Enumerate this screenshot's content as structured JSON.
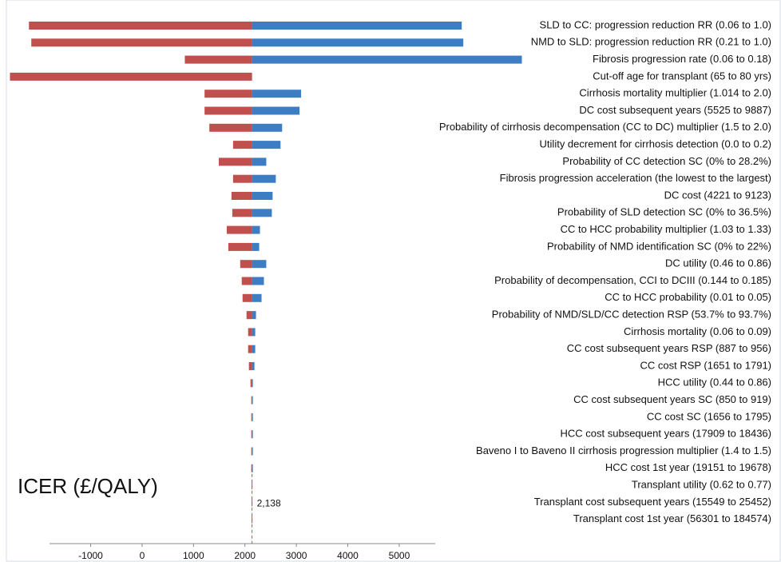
{
  "chart_data": {
    "type": "tornado",
    "xlabel": "ICER (£/QALY)",
    "base": {
      "value": 2138,
      "label": "2,138"
    },
    "categories": [
      "SLD to CC: progression reduction RR (0.06 to 1.0)",
      "NMD to SLD: progression reduction RR (0.21 to 1.0)",
      "Fibrosis progression rate (0.06 to 0.18)",
      "Cut-off age for transplant (65 to 80 yrs)",
      "Cirrhosis mortality multiplier (1.014 to 2.0)",
      "DC cost subsequent years (5525 to 9887)",
      "Probability of cirrhosis decompensation (CC to DC) multiplier (1.5 to 2.0)",
      "Utility decrement for cirrhosis detection (0.0 to 0.2)",
      "Probability of CC detection SC (0% to 28.2%)",
      "Fibrosis progression acceleration (the lowest to the largest)",
      "DC cost (4221 to 9123)",
      "Probability of SLD detection SC (0% to 36.5%)",
      "CC to HCC probability multiplier (1.03 to 1.33)",
      "Probability of NMD identification SC (0% to 22%)",
      "DC utility (0.46 to 0.86)",
      "Probability of decompensation, CCI to DCIII (0.144 to 0.185)",
      "CC to HCC probability (0.01 to 0.05)",
      "Probability of NMD/SLD/CC detection RSP (53.7% to 93.7%)",
      "Cirrhosis mortality (0.06 to 0.09)",
      "CC cost subsequent years RSP (887 to 956)",
      "CC cost RSP (1651 to 1791)",
      "HCC utility (0.44 to 0.86)",
      "CC cost subsequent years SC (850 to 919)",
      "CC cost SC (1656 to 1795)",
      "HCC cost subsequent years (17909 to 18436)",
      "Baveno I to Baveno II cirrhosis progression multiplier (1.4 to 1.5)",
      "HCC cost 1st year (19151 to 19678)",
      "Transplant utility (0.62 to 0.77)",
      "Transplant cost subsequent years (15549 to 25452)",
      "Transplant cost 1st year (56301 to 184574)"
    ],
    "series": [
      {
        "color": "#c0504d",
        "values": [
          -2200,
          -2154,
          831,
          -2569,
          1215,
          1215,
          1308,
          1769,
          1492,
          1769,
          1738,
          1754,
          1646,
          1677,
          1908,
          1938,
          1954,
          2031,
          2062,
          2062,
          2077,
          2108,
          2123,
          2123,
          2123,
          2123,
          2123,
          2130,
          2130,
          2130
        ]
      },
      {
        "color": "#3d7dc4",
        "values": [
          6215,
          6246,
          7385,
          null,
          3092,
          3062,
          2723,
          2692,
          2415,
          2600,
          2538,
          2523,
          2292,
          2277,
          2415,
          2369,
          2323,
          2215,
          2200,
          2200,
          2185,
          2154,
          2146,
          2146,
          2146,
          2146,
          2146,
          null,
          null,
          null
        ]
      }
    ],
    "xlim": [
      -1800,
      5700
    ],
    "xticks": [
      -1000,
      0,
      1000,
      2000,
      3000,
      4000,
      5000
    ]
  }
}
